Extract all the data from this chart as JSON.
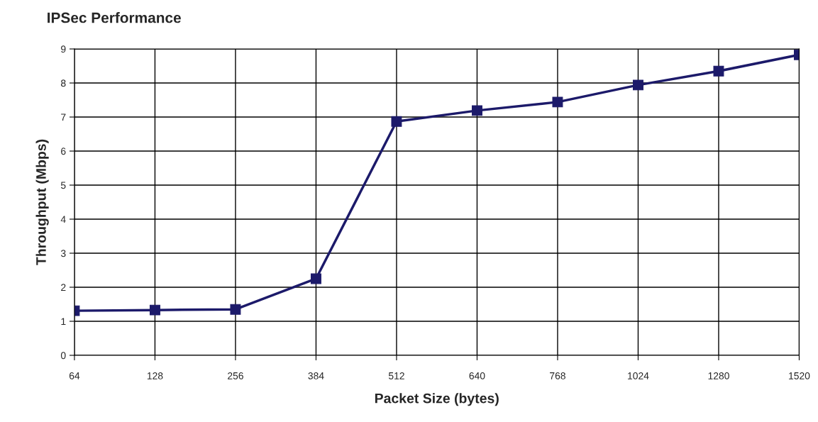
{
  "chart_data": {
    "type": "line",
    "title": "IPSec Performance",
    "xlabel": "Packet Size (bytes)",
    "ylabel": "Throughput (Mbps)",
    "categories": [
      "64",
      "128",
      "256",
      "384",
      "512",
      "640",
      "768",
      "1024",
      "1280",
      "1520"
    ],
    "series": [
      {
        "color": "#1c1a6a",
        "values": [
          1.31,
          1.33,
          1.35,
          2.25,
          6.87,
          7.19,
          7.44,
          7.94,
          8.35,
          8.83
        ]
      }
    ],
    "ylim": [
      0,
      9
    ],
    "yticks": [
      0,
      1,
      2,
      3,
      4,
      5,
      6,
      7,
      8,
      9
    ],
    "grid": true,
    "marker": "square",
    "line_style": "solid",
    "legend": false
  }
}
